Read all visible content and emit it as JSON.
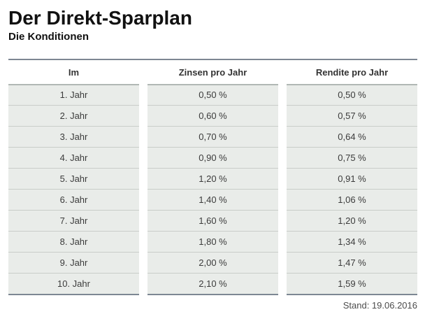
{
  "page": {
    "title": "Der Direkt-Sparplan",
    "subtitle": "Die Konditionen",
    "stand": "Stand: 19.06.2016"
  },
  "table": {
    "headers": [
      "Im",
      "Zinsen pro Jahr",
      "Rendite pro Jahr"
    ],
    "rows": [
      [
        "1. Jahr",
        "0,50 %",
        "0,50 %"
      ],
      [
        "2. Jahr",
        "0,60 %",
        "0,57 %"
      ],
      [
        "3. Jahr",
        "0,70 %",
        "0,64 %"
      ],
      [
        "4. Jahr",
        "0,90 %",
        "0,75 %"
      ],
      [
        "5. Jahr",
        "1,20 %",
        "0,91 %"
      ],
      [
        "6. Jahr",
        "1,40 %",
        "1,06 %"
      ],
      [
        "7. Jahr",
        "1,60 %",
        "1,20 %"
      ],
      [
        "8. Jahr",
        "1,80 %",
        "1,34 %"
      ],
      [
        "9. Jahr",
        "2,00 %",
        "1,47 %"
      ],
      [
        "10. Jahr",
        "2,10 %",
        "1,59 %"
      ]
    ]
  },
  "colors": {
    "rule_dark": "#7d8793",
    "cell_background": "#e9ece9",
    "row_separator": "#c9cdc9",
    "header_separator": "#b1b8b5",
    "text": "#3b3b3b"
  }
}
